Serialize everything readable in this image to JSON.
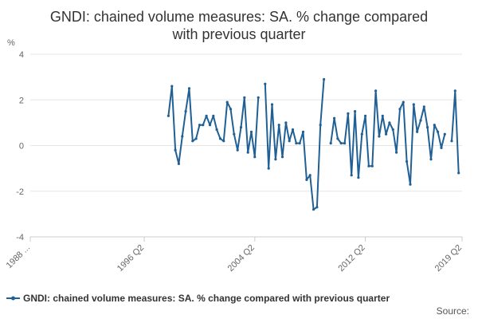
{
  "chart_data": {
    "type": "line",
    "title": "GNDI: chained volume measures: SA. % change compared with previous quarter",
    "title_lines": [
      "GNDI: chained volume measures: SA. % change compared",
      "with previous quarter"
    ],
    "xlabel": "",
    "ylabel": "%",
    "ylim": [
      -4,
      4
    ],
    "y_ticks": [
      "4",
      "2",
      "0",
      "-2",
      "-4"
    ],
    "y_tick_values": [
      4,
      2,
      0,
      -2,
      -4
    ],
    "x_tick_labels": [
      "1988 ...",
      "1996 Q2",
      "2004 Q2",
      "2012 Q2",
      "2019 Q2"
    ],
    "x_tick_years": [
      1988.0,
      1996.25,
      2004.25,
      2012.25,
      2019.25
    ],
    "xlim": [
      1988.0,
      2019.25
    ],
    "x_start": 1998.0,
    "x_step": 0.25,
    "legend_position": "bottom",
    "grid": true,
    "color": "#206095",
    "series": [
      {
        "name": "GNDI: chained volume measures: SA. % change compared with previous quarter",
        "values": [
          1.3,
          2.6,
          -0.2,
          -0.8,
          0.4,
          1.5,
          2.5,
          0.2,
          0.3,
          0.9,
          0.9,
          1.3,
          0.9,
          1.3,
          0.7,
          0.3,
          0.2,
          1.9,
          1.6,
          0.5,
          -0.2,
          0.8,
          2.1,
          -0.3,
          0.6,
          -0.5,
          2.1,
          null,
          2.7,
          -1.0,
          1.8,
          -0.6,
          0.9,
          -0.5,
          1.0,
          0.2,
          0.7,
          0.1,
          0.1,
          0.6,
          -1.5,
          -1.3,
          -2.8,
          -2.7,
          0.9,
          2.9,
          null,
          0.1,
          1.2,
          0.3,
          0.1,
          0.1,
          1.4,
          -1.3,
          1.5,
          -1.4,
          0.5,
          1.3,
          -0.9,
          -0.9,
          2.4,
          0.4,
          1.3,
          0.5,
          1.0,
          0.7,
          -0.3,
          1.6,
          1.9,
          -0.7,
          -1.7,
          1.8,
          0.6,
          1.1,
          1.7,
          0.8,
          -0.6,
          0.9,
          0.6,
          -0.1,
          0.5,
          null,
          0.2,
          2.4,
          -1.2
        ]
      }
    ]
  },
  "legend": {
    "label": "GNDI: chained volume measures: SA. % change compared with previous quarter"
  },
  "source": {
    "label": "Source:"
  }
}
